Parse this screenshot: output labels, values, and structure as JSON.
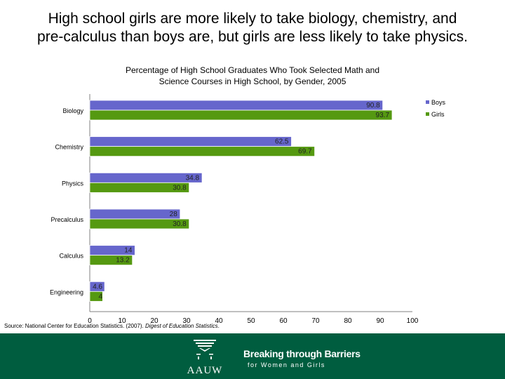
{
  "slide": {
    "title": "High school girls are more likely to take biology, chemistry, and\npre-calculus than boys are, but girls are less likely to take physics."
  },
  "chart_data": {
    "type": "bar",
    "orientation": "horizontal",
    "title": "Percentage of High School Graduates Who Took Selected Math and\nScience Courses in High School, by Gender, 2005",
    "categories": [
      "Biology",
      "Chemistry",
      "Physics",
      "Precalculus",
      "Calculus",
      "Engineering"
    ],
    "series": [
      {
        "name": "Boys",
        "color": "#6666cc",
        "values": [
          90.8,
          62.5,
          34.8,
          28,
          14,
          4.6
        ],
        "labels": [
          "90.8",
          "62.5",
          "34.8",
          "28",
          "14",
          "4.6"
        ]
      },
      {
        "name": "Girls",
        "color": "#559911",
        "values": [
          93.7,
          69.7,
          30.8,
          30.8,
          13.2,
          4
        ],
        "labels": [
          "93.7",
          "69.7",
          "30.8",
          "30.8",
          "13.2",
          "4"
        ]
      }
    ],
    "xlim": [
      0,
      100
    ],
    "xticks": [
      "0",
      "10",
      "20",
      "30",
      "40",
      "50",
      "60",
      "70",
      "80",
      "90",
      "100"
    ],
    "grid": false,
    "legend": "top-right"
  },
  "source": {
    "prefix": "Source: National Center for Education Statistics. (2007). ",
    "italic": "Digest of Education Statistics",
    "suffix": "."
  },
  "footer": {
    "logo_text": "AAUW",
    "tagline_main": "Breaking through Barriers",
    "tagline_sub": "for Women and Girls",
    "background": "#005d3f"
  }
}
